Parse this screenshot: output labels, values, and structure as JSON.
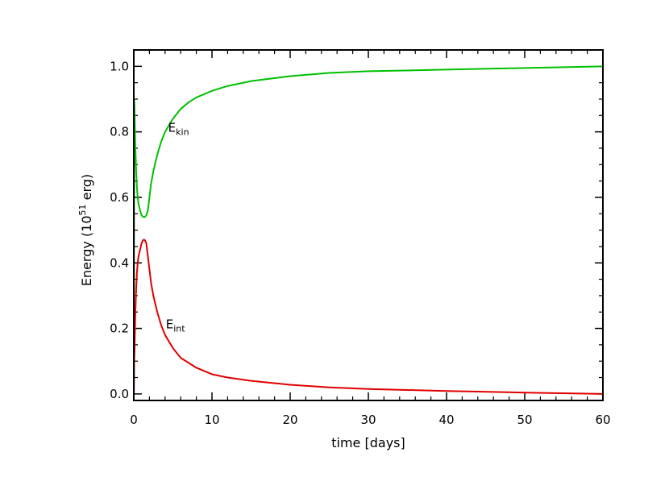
{
  "chart_data": {
    "type": "line",
    "title": "",
    "xlabel": "time [days]",
    "ylabel_main": "Energy (10",
    "ylabel_sup": "51",
    "ylabel_tail": " erg)",
    "xlim": [
      0,
      60
    ],
    "ylim": [
      -0.02,
      1.05
    ],
    "xticks": [
      0,
      10,
      20,
      30,
      40,
      50,
      60
    ],
    "xtick_labels": [
      "0",
      "10",
      "20",
      "30",
      "40",
      "50",
      "60"
    ],
    "yticks": [
      0.0,
      0.2,
      0.4,
      0.6,
      0.8,
      1.0
    ],
    "ytick_labels": [
      "0.0",
      "0.2",
      "0.4",
      "0.6",
      "0.8",
      "1.0"
    ],
    "x_minor_step": 2,
    "y_minor_step": 0.05,
    "grid": false,
    "series": [
      {
        "label_main": "E",
        "label_sub": "kin",
        "label_at": [
          4.4,
          0.8
        ],
        "color": "#00c000",
        "x": [
          0,
          0.05,
          0.1,
          0.15,
          0.2,
          0.3,
          0.4,
          0.5,
          0.6,
          0.8,
          1.0,
          1.2,
          1.4,
          1.6,
          1.8,
          2.0,
          2.2,
          2.5,
          3.0,
          3.5,
          4.0,
          5.0,
          6.0,
          7.0,
          8.0,
          10,
          12,
          15,
          20,
          25,
          30,
          40,
          50,
          60
        ],
        "y": [
          0.0,
          0.9,
          0.86,
          0.8,
          0.75,
          0.68,
          0.63,
          0.6,
          0.58,
          0.56,
          0.545,
          0.54,
          0.54,
          0.545,
          0.56,
          0.6,
          0.64,
          0.68,
          0.73,
          0.77,
          0.8,
          0.84,
          0.87,
          0.89,
          0.905,
          0.925,
          0.94,
          0.955,
          0.97,
          0.98,
          0.985,
          0.99,
          0.995,
          1.0
        ]
      },
      {
        "label_main": "E",
        "label_sub": "int",
        "label_at": [
          4.1,
          0.2
        ],
        "color": "#e00000",
        "x": [
          0,
          0.01,
          0.05,
          0.1,
          0.15,
          0.2,
          0.3,
          0.4,
          0.5,
          0.6,
          0.8,
          1.0,
          1.2,
          1.4,
          1.6,
          1.8,
          2.0,
          2.2,
          2.5,
          3.0,
          3.5,
          4.0,
          5.0,
          6.0,
          7.0,
          8.0,
          10,
          12,
          15,
          20,
          25,
          30,
          40,
          50,
          60
        ],
        "y": [
          1.0,
          0.0,
          0.1,
          0.14,
          0.2,
          0.25,
          0.32,
          0.37,
          0.4,
          0.42,
          0.44,
          0.46,
          0.47,
          0.47,
          0.46,
          0.42,
          0.38,
          0.34,
          0.3,
          0.25,
          0.21,
          0.18,
          0.14,
          0.11,
          0.095,
          0.08,
          0.06,
          0.05,
          0.04,
          0.028,
          0.02,
          0.015,
          0.009,
          0.004,
          0.0
        ]
      }
    ]
  }
}
